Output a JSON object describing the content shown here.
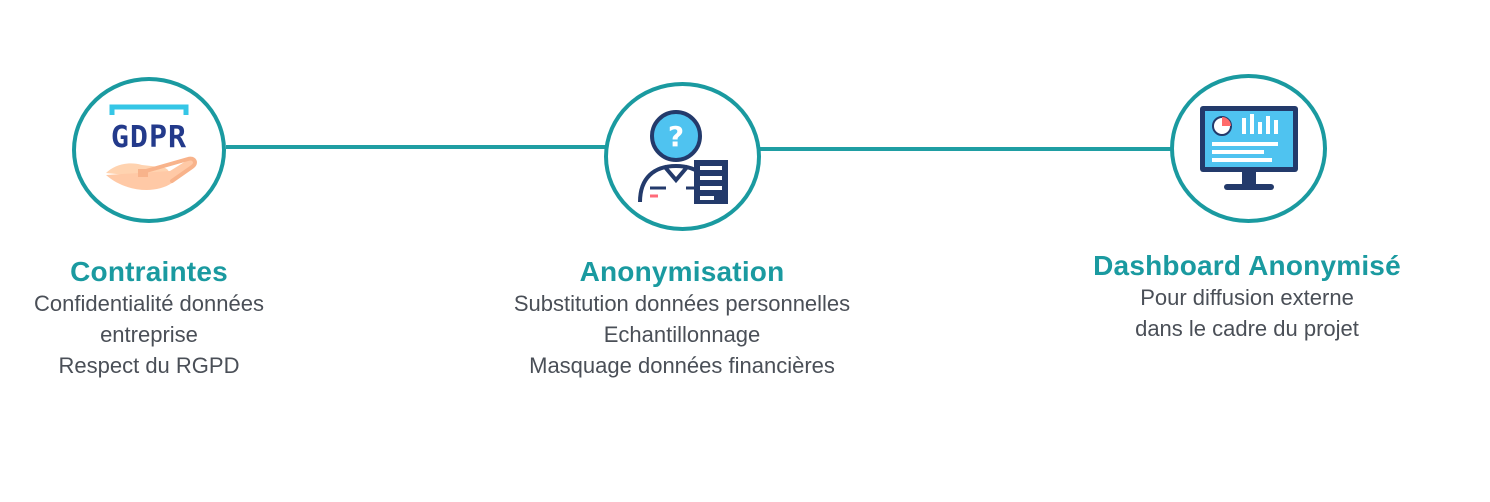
{
  "steps": [
    {
      "title": "Contraintes",
      "lines": [
        "Confidentialité données",
        "entreprise",
        "Respect du RGPD"
      ],
      "icon": "gdpr-hand-icon",
      "icon_text": "GDPR"
    },
    {
      "title": "Anonymisation",
      "lines": [
        "Substitution données personnelles",
        "Echantillonnage",
        "Masquage données financières"
      ],
      "icon": "anonymous-person-document-icon"
    },
    {
      "title": "Dashboard Anonymisé",
      "lines": [
        "Pour diffusion externe",
        "dans le cadre du projet"
      ],
      "icon": "dashboard-monitor-icon"
    }
  ],
  "colors": {
    "accent": "#1a9aa0",
    "text": "#4a4f57",
    "icon_blue": "#3ab6ea",
    "icon_dark": "#233a6b"
  }
}
